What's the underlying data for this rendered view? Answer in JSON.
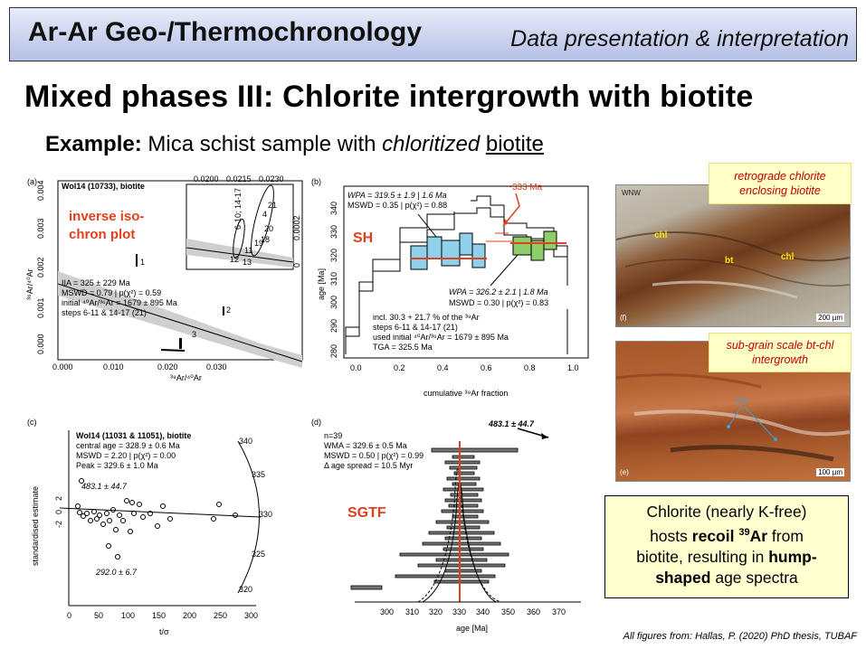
{
  "header": {
    "title": "Ar-Ar Geo-/Thermochronology",
    "subtitle": "Data presentation & interpretation"
  },
  "slide": {
    "title": "Mixed phases III: Chlorite intergrowth with biotite",
    "example_prefix": "Example:",
    "example_text1": "Mica schist sample with",
    "example_italic": "chloritized",
    "example_underline": "biotite"
  },
  "panel_a": {
    "tag": "(a)",
    "label": "inverse iso-\nchron plot",
    "sample": "Wol14 (10733), biotite",
    "stats": [
      "IIA = 325 ± 229 Ma",
      "MSWD = 0.79 | p(χ²) = 0.59",
      "initial ⁴⁰Ar/³⁶Ar = 1679 ± 895 Ma",
      "steps 6-11 & 14-17 (21)"
    ],
    "xlabel": "³⁹Ar/⁴⁰Ar",
    "ylabel": "³⁶Ar/⁴⁰Ar",
    "xticks": [
      "0.000",
      "0.010",
      "0.020",
      "0.030"
    ],
    "yticks": [
      "0.000",
      "0.001",
      "0.002",
      "0.003",
      "0.004"
    ],
    "inset_xticks": [
      "0.0200",
      "0.0215",
      "0.0230"
    ],
    "inset_yticks": [
      "0",
      "0.0002"
    ],
    "inset_labels": [
      "12",
      "13",
      "11",
      "6-10; 14-17",
      "19",
      "18",
      "20",
      "4",
      "21"
    ],
    "point_labels": [
      "1",
      "2",
      "3"
    ]
  },
  "panel_b": {
    "tag": "(b)",
    "label": "SH",
    "annotation": "~333 Ma",
    "wpa1": "WPA = 319.5 ± 1.9 | 1.6 Ma",
    "mswd1": "MSWD = 0.35 | p(χ²) = 0.88",
    "wpa2": "WPA = 326.2 ± 2.1 | 1.8 Ma",
    "mswd2": "MSWD = 0.30 | p(χ²) = 0.83",
    "notes": [
      "incl. 30.3 + 21.7 % of the ³⁹Ar",
      "steps 6-11 & 14-17 (21)",
      "used initial ⁴⁰Ar/³⁶Ar = 1679 ± 895 Ma",
      "TGA = 325.5 Ma"
    ],
    "xlabel": "cumulative ³⁹Ar fraction",
    "ylabel": "age [Ma]",
    "xticks": [
      "0.0",
      "0.2",
      "0.4",
      "0.6",
      "0.8",
      "1.0"
    ],
    "yticks": [
      "280",
      "290",
      "300",
      "310",
      "320",
      "330",
      "340"
    ]
  },
  "panel_c": {
    "tag": "(c)",
    "sample": "Wol14 (11031 & 11051), biotite",
    "stats": [
      "central age = 328.9 ± 0.6 Ma",
      "MSWD = 2.20 | p(χ²) = 0.00",
      "Peak = 329.6 ± 1.0 Ma"
    ],
    "high_label": "483.1 ± 44.7",
    "low_label": "292.0 ± 6.7",
    "xlabel": "t/σ",
    "ylabel": "standardised estimate",
    "xticks": [
      "0",
      "50",
      "100",
      "150",
      "200",
      "250",
      "300"
    ],
    "yticks": [
      "-2",
      "0",
      "2"
    ],
    "arc_ticks": [
      "340",
      "335",
      "330",
      "325",
      "320"
    ]
  },
  "panel_d": {
    "tag": "(d)",
    "label": "SGTF",
    "stats": [
      "n=39",
      "WMA = 329.6 ± 0.5 Ma",
      "MSWD = 0.50 | p(χ²) = 0.99",
      "Δ age spread = 10.5 Myr"
    ],
    "arrow_label": "483.1 ± 44.7",
    "xlabel": "age [Ma]",
    "xticks": [
      "300",
      "310",
      "320",
      "330",
      "340",
      "350",
      "360",
      "370"
    ]
  },
  "photos": {
    "top_callout": "retrograde chlorite enclosing biotite",
    "top_labels": {
      "wnw": "WNW",
      "chl1": "chl",
      "chl2": "chl",
      "bt": "bt",
      "tag": "(f)",
      "scale": "200 µm"
    },
    "bottom_callout": "sub-grain scale bt-chl intergrowth",
    "bottom_labels": {
      "chl": "Chl",
      "tag": "(e)",
      "scale": "100 µm"
    }
  },
  "conclusion": {
    "l1": "Chlorite (nearly K-free)",
    "l2a": "hosts ",
    "l2b": "recoil ",
    "l2sup": "39",
    "l2c": "Ar",
    "l2d": " from",
    "l3a": "biotite, resulting in ",
    "l3b": "hump-",
    "l4a": "shaped",
    "l4b": " age spectra"
  },
  "credit": "All figures from: Hallas, P. (2020) PhD thesis, TUBAF",
  "colors": {
    "accent_red": "#e0401c",
    "callout_bg": "#ffffc8",
    "blue_box": "#8fd0ea",
    "green_box": "#8fcc6a"
  }
}
